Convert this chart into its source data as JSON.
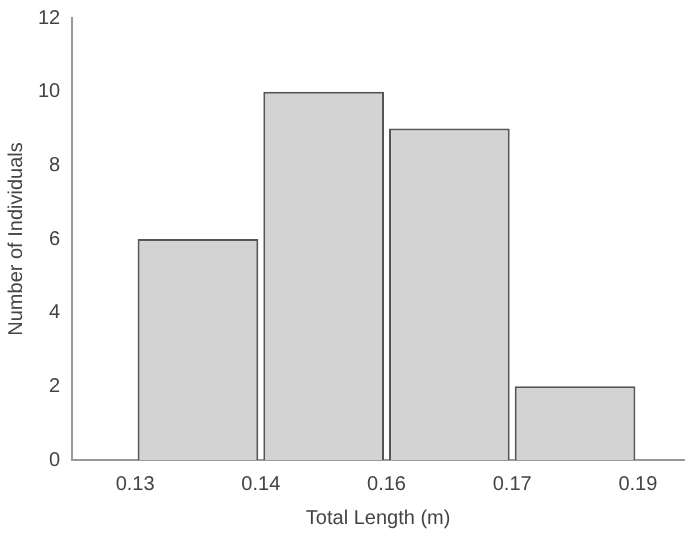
{
  "chart_data": {
    "type": "histogram",
    "xlabel": "Total Length (m)",
    "ylabel": "Number of Individuals",
    "bins": [
      0.13,
      0.145,
      0.16,
      0.175,
      0.19
    ],
    "values": [
      6,
      10,
      9,
      2
    ],
    "color": "#d3d3d3",
    "xlim": [
      0.1225,
      0.1955
    ],
    "xticks": [
      {
        "value": 0.13,
        "label": "0.13"
      },
      {
        "value": 0.145,
        "label": "0.14"
      },
      {
        "value": 0.16,
        "label": "0.16"
      },
      {
        "value": 0.175,
        "label": "0.17"
      },
      {
        "value": 0.19,
        "label": "0.19"
      }
    ],
    "ylim": [
      0,
      12
    ],
    "yticks": [
      0,
      2,
      4,
      6,
      8,
      10,
      12
    ],
    "grid": false,
    "legend": false
  }
}
